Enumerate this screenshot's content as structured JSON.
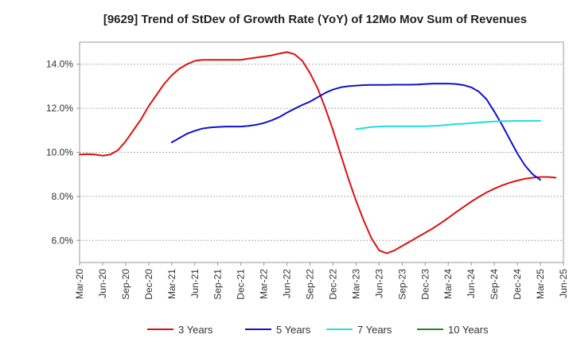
{
  "chart_data": {
    "type": "line",
    "title": "[9629]  Trend of StDev of Growth Rate (YoY) of 12Mo Mov Sum of Revenues",
    "xlabel": "",
    "ylabel": "",
    "ylim": [
      5.0,
      15.0
    ],
    "y_ticks": [
      6.0,
      8.0,
      10.0,
      12.0,
      14.0
    ],
    "y_tick_labels": [
      "6.0%",
      "8.0%",
      "10.0%",
      "12.0%",
      "14.0%"
    ],
    "x_tick_labels": [
      "Mar-20",
      "Jun-20",
      "Sep-20",
      "Dec-20",
      "Mar-21",
      "Jun-21",
      "Sep-21",
      "Dec-21",
      "Mar-22",
      "Jun-22",
      "Sep-22",
      "Dec-22",
      "Mar-23",
      "Jun-23",
      "Sep-23",
      "Dec-23",
      "Mar-24",
      "Jun-24",
      "Sep-24",
      "Dec-24",
      "Mar-25",
      "Jun-25"
    ],
    "x_index_note": "x is a month index: 0 = Mar-20, 3 = Jun-20, ... 63 = Jun-25",
    "x_range": [
      0,
      63
    ],
    "grid": "horizontal dashed",
    "legend_position": "bottom",
    "series": [
      {
        "name": "3 Years",
        "color": "#dd1111",
        "points": [
          [
            0,
            9.9
          ],
          [
            1,
            9.92
          ],
          [
            2,
            9.9
          ],
          [
            3,
            9.85
          ],
          [
            4,
            9.9
          ],
          [
            5,
            10.1
          ],
          [
            6,
            10.5
          ],
          [
            7,
            11.0
          ],
          [
            8,
            11.5
          ],
          [
            9,
            12.1
          ],
          [
            10,
            12.6
          ],
          [
            11,
            13.1
          ],
          [
            12,
            13.5
          ],
          [
            13,
            13.8
          ],
          [
            14,
            14.0
          ],
          [
            15,
            14.15
          ],
          [
            16,
            14.2
          ],
          [
            17,
            14.2
          ],
          [
            18,
            14.2
          ],
          [
            19,
            14.2
          ],
          [
            20,
            14.2
          ],
          [
            21,
            14.2
          ],
          [
            22,
            14.25
          ],
          [
            23,
            14.3
          ],
          [
            24,
            14.35
          ],
          [
            25,
            14.4
          ],
          [
            26,
            14.48
          ],
          [
            27,
            14.55
          ],
          [
            28,
            14.45
          ],
          [
            29,
            14.15
          ],
          [
            30,
            13.6
          ],
          [
            31,
            12.9
          ],
          [
            32,
            12.0
          ],
          [
            33,
            11.0
          ],
          [
            34,
            9.9
          ],
          [
            35,
            8.8
          ],
          [
            36,
            7.8
          ],
          [
            37,
            6.9
          ],
          [
            38,
            6.1
          ],
          [
            39,
            5.55
          ],
          [
            40,
            5.42
          ],
          [
            41,
            5.55
          ],
          [
            42,
            5.75
          ],
          [
            43,
            5.95
          ],
          [
            44,
            6.15
          ],
          [
            45,
            6.35
          ],
          [
            46,
            6.55
          ],
          [
            47,
            6.78
          ],
          [
            48,
            7.02
          ],
          [
            49,
            7.28
          ],
          [
            50,
            7.52
          ],
          [
            51,
            7.76
          ],
          [
            52,
            7.98
          ],
          [
            53,
            8.18
          ],
          [
            54,
            8.35
          ],
          [
            55,
            8.5
          ],
          [
            56,
            8.62
          ],
          [
            57,
            8.72
          ],
          [
            58,
            8.8
          ],
          [
            59,
            8.85
          ],
          [
            60,
            8.88
          ],
          [
            61,
            8.88
          ],
          [
            62,
            8.85
          ]
        ]
      },
      {
        "name": "5 Years",
        "color": "#1111cc",
        "points": [
          [
            12,
            10.45
          ],
          [
            13,
            10.65
          ],
          [
            14,
            10.85
          ],
          [
            15,
            10.98
          ],
          [
            16,
            11.08
          ],
          [
            17,
            11.13
          ],
          [
            18,
            11.15
          ],
          [
            19,
            11.17
          ],
          [
            20,
            11.17
          ],
          [
            21,
            11.17
          ],
          [
            22,
            11.2
          ],
          [
            23,
            11.25
          ],
          [
            24,
            11.33
          ],
          [
            25,
            11.45
          ],
          [
            26,
            11.6
          ],
          [
            27,
            11.8
          ],
          [
            28,
            11.98
          ],
          [
            29,
            12.15
          ],
          [
            30,
            12.3
          ],
          [
            31,
            12.5
          ],
          [
            32,
            12.7
          ],
          [
            33,
            12.85
          ],
          [
            34,
            12.95
          ],
          [
            35,
            13.0
          ],
          [
            36,
            13.03
          ],
          [
            37,
            13.05
          ],
          [
            38,
            13.06
          ],
          [
            39,
            13.06
          ],
          [
            40,
            13.06
          ],
          [
            41,
            13.07
          ],
          [
            42,
            13.07
          ],
          [
            43,
            13.07
          ],
          [
            44,
            13.08
          ],
          [
            45,
            13.1
          ],
          [
            46,
            13.12
          ],
          [
            47,
            13.12
          ],
          [
            48,
            13.12
          ],
          [
            49,
            13.1
          ],
          [
            50,
            13.05
          ],
          [
            51,
            12.95
          ],
          [
            52,
            12.75
          ],
          [
            53,
            12.4
          ],
          [
            54,
            11.85
          ],
          [
            55,
            11.25
          ],
          [
            56,
            10.6
          ],
          [
            57,
            9.95
          ],
          [
            58,
            9.4
          ],
          [
            59,
            9.0
          ],
          [
            60,
            8.75
          ]
        ]
      },
      {
        "name": "7 Years",
        "color": "#22dddd",
        "points": [
          [
            36,
            11.05
          ],
          [
            37,
            11.1
          ],
          [
            38,
            11.15
          ],
          [
            39,
            11.17
          ],
          [
            40,
            11.18
          ],
          [
            41,
            11.18
          ],
          [
            42,
            11.18
          ],
          [
            43,
            11.18
          ],
          [
            44,
            11.18
          ],
          [
            45,
            11.18
          ],
          [
            46,
            11.2
          ],
          [
            47,
            11.22
          ],
          [
            48,
            11.25
          ],
          [
            49,
            11.28
          ],
          [
            50,
            11.3
          ],
          [
            51,
            11.33
          ],
          [
            52,
            11.35
          ],
          [
            53,
            11.38
          ],
          [
            54,
            11.4
          ],
          [
            55,
            11.41
          ],
          [
            56,
            11.42
          ],
          [
            57,
            11.43
          ],
          [
            58,
            11.43
          ],
          [
            59,
            11.43
          ],
          [
            60,
            11.43
          ]
        ]
      },
      {
        "name": "10 Years",
        "color": "#228822",
        "points": []
      }
    ]
  }
}
